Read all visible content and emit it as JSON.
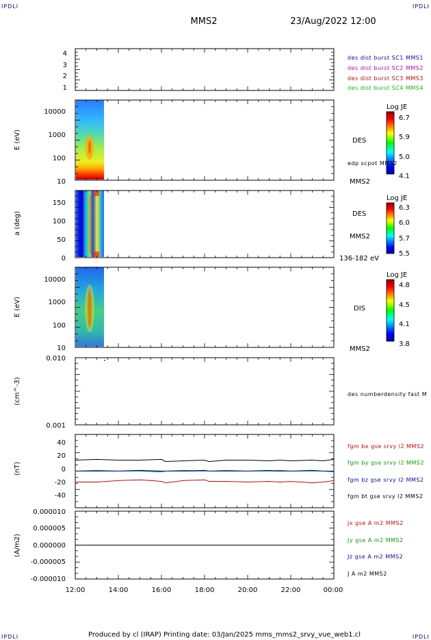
{
  "corner_labels": {
    "tl": "IPDLI",
    "tr": "IPDLI",
    "bl": "IPDLI",
    "br": "IPDLI"
  },
  "header": {
    "spacecraft": "MMS2",
    "datetime": "23/Aug/2022 12:00"
  },
  "footer": {
    "text": "Produced by cl (IRAP)   Printing date: 03/Jan/2025   mms_mms2_srvy_vue_web1.cl"
  },
  "time_axis": {
    "ticks": [
      "12:00",
      "14:00",
      "16:00",
      "18:00",
      "20:00",
      "22:00",
      "00:00"
    ]
  },
  "panels": {
    "burst": {
      "yticks": [
        "4",
        "3",
        "2",
        "1"
      ],
      "legend": [
        {
          "text": "des dist burst SC1 MMS1",
          "color": "#0000ff"
        },
        {
          "text": "des dist burst SC2 MMS2",
          "color": "#cc00cc"
        },
        {
          "text": "des dist burst SC3 MMS3",
          "color": "#ee0000"
        },
        {
          "text": "des dist burst SC4 MMS4",
          "color": "#00cc00"
        }
      ]
    },
    "des_energy": {
      "ylabel": "E (eV)",
      "yticks": [
        "10000",
        "1000",
        "100",
        "10"
      ],
      "side_labels": [
        "DES",
        "edp scpot MMS2",
        "MMS2"
      ],
      "colorbar": {
        "title": "Log JE",
        "ticks": [
          "6.7",
          "5.9",
          "5.0",
          "4.1"
        ]
      }
    },
    "des_pitch": {
      "ylabel": "a (deg)",
      "yticks": [
        "150",
        "100",
        "50",
        "0"
      ],
      "side_labels": [
        "DES",
        "MMS2",
        "136-182 eV"
      ],
      "colorbar": {
        "title": "Log JE",
        "ticks": [
          "6.3",
          "6.0",
          "5.7",
          "5.5"
        ]
      }
    },
    "dis_energy": {
      "ylabel": "E (eV)",
      "yticks": [
        "10000",
        "1000",
        "100",
        "10"
      ],
      "side_labels": [
        "DIS",
        "MMS2"
      ],
      "colorbar": {
        "title": "Log JE",
        "ticks": [
          "4.8",
          "4.5",
          "4.1",
          "3.8"
        ]
      }
    },
    "density": {
      "ylabel": "(cm^-3)",
      "yticks": [
        "0.010",
        "0.001"
      ],
      "side_labels": [
        "des numberdensity fast M"
      ]
    },
    "bfield": {
      "ylabel": "(nT)",
      "yticks": [
        "40",
        "20",
        "0",
        "-20",
        "-40"
      ],
      "legend": [
        {
          "text": "fgm bx gse srvy l2 MMS2",
          "color": "#ee0000"
        },
        {
          "text": "fgm by gse srvy l2 MMS2",
          "color": "#00aa00"
        },
        {
          "text": "fgm bz gse srvy l2 MMS2",
          "color": "#0000ee"
        },
        {
          "text": "fgm bt gse srvy l2 MMS2",
          "color": "#000000"
        }
      ]
    },
    "current": {
      "ylabel": "(A/m2)",
      "yticks": [
        "0.000010",
        "0.000005",
        "0.000000",
        "-0.000005",
        "-0.000010"
      ],
      "legend": [
        {
          "text": "Jx gse A m2 MMS2",
          "color": "#ee0000"
        },
        {
          "text": "Jy gse A m2 MMS2",
          "color": "#00aa00"
        },
        {
          "text": "Jz gse A m2 MMS2",
          "color": "#0000ee"
        },
        {
          "text": "J A m2 MMS2",
          "color": "#000000"
        }
      ]
    }
  },
  "chart_data": [
    {
      "type": "line",
      "title": "",
      "ylim": [
        0.5,
        4.5
      ],
      "series": []
    },
    {
      "type": "heatmap",
      "ylabel": "E (eV)",
      "yscale": "log",
      "ylim": [
        10,
        30000
      ],
      "data_extent_hours": [
        0,
        1.3
      ],
      "colorbar": {
        "title": "Log JE",
        "range": [
          4.1,
          6.7
        ]
      }
    },
    {
      "type": "heatmap",
      "ylabel": "a (deg)",
      "ylim": [
        0,
        180
      ],
      "data_extent_hours": [
        0,
        1.3
      ],
      "colorbar": {
        "title": "Log JE",
        "range": [
          5.5,
          6.3
        ]
      }
    },
    {
      "type": "heatmap",
      "ylabel": "E (eV)",
      "yscale": "log",
      "ylim": [
        10,
        30000
      ],
      "data_extent_hours": [
        0,
        1.3
      ],
      "colorbar": {
        "title": "Log JE",
        "range": [
          3.8,
          4.8
        ]
      }
    },
    {
      "type": "scatter",
      "ylabel": "(cm^-3)",
      "yscale": "log",
      "ylim": [
        0.001,
        0.01
      ],
      "x": [
        0.7
      ],
      "y": [
        0.0093
      ]
    },
    {
      "type": "line",
      "ylabel": "(nT)",
      "ylim": [
        -50,
        50
      ],
      "x": [
        0,
        1,
        2,
        3,
        4,
        4.2,
        5,
        6,
        6.2,
        7,
        8,
        9,
        9.5,
        10,
        11,
        11.5,
        12
      ],
      "series": [
        {
          "name": "fgm bx gse srvy l2 MMS2",
          "color": "#ee0000",
          "values": [
            -15,
            -15,
            -13,
            -12,
            -14,
            -16,
            -13,
            -12,
            -14,
            -14,
            -15,
            -14,
            -15,
            -14,
            -16,
            -15,
            -13
          ]
        },
        {
          "name": "fgm by gse srvy l2 MMS2",
          "color": "#00aa00",
          "values": [
            0,
            1,
            0,
            0,
            -1,
            0,
            1,
            0,
            0,
            1,
            0,
            0,
            1,
            0,
            0,
            0,
            -1
          ]
        },
        {
          "name": "fgm bz gse srvy l2 MMS2",
          "color": "#0000ee",
          "values": [
            0,
            0,
            0,
            1,
            0,
            0,
            0,
            1,
            0,
            0,
            0,
            1,
            0,
            0,
            1,
            0,
            0
          ]
        },
        {
          "name": "fgm bt gse srvy l2 MMS2",
          "color": "#000000",
          "values": [
            15,
            16,
            15,
            15,
            16,
            13,
            14,
            15,
            13,
            15,
            15,
            14,
            15,
            14,
            15,
            14,
            16
          ]
        }
      ]
    },
    {
      "type": "line",
      "ylabel": "(A/m2)",
      "ylim": [
        -1e-05,
        1e-05
      ],
      "x": [
        0,
        12
      ],
      "series": [
        {
          "name": "J A m2 MMS2",
          "color": "#000000",
          "values": [
            0,
            0
          ]
        }
      ]
    }
  ]
}
